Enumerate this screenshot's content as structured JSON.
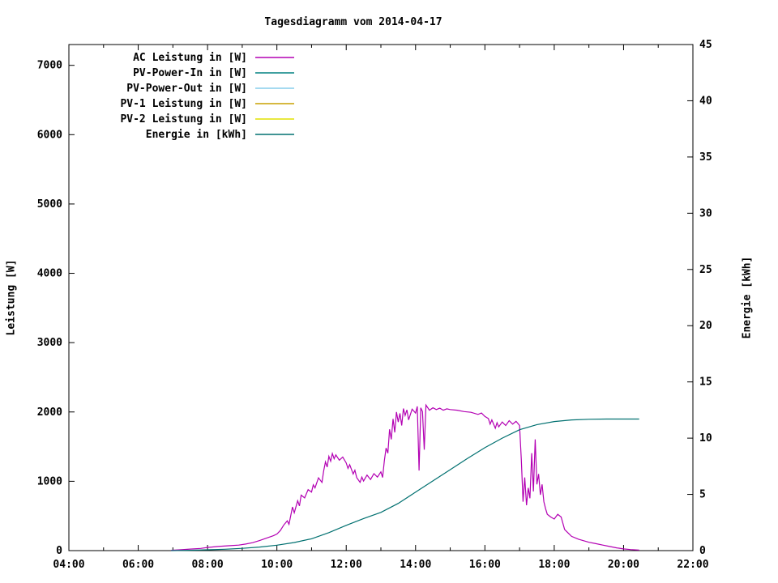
{
  "title": "Tagesdiagramm vom 2014-04-17",
  "left_axis_label": "Leistung [W]",
  "right_axis_label": "Energie [kWh]",
  "chart_data": {
    "type": "line",
    "title": "Tagesdiagramm vom 2014-04-17",
    "grid": false,
    "legend_position": "top-left-inside",
    "x_axis": {
      "range": [
        4,
        22
      ],
      "tick_hours": [
        4,
        6,
        8,
        10,
        12,
        14,
        16,
        18,
        20,
        22
      ],
      "tick_labels": [
        "04:00",
        "06:00",
        "08:00",
        "10:00",
        "12:00",
        "14:00",
        "16:00",
        "18:00",
        "20:00",
        "22:00"
      ]
    },
    "left_y_axis": {
      "label": "Leistung [W]",
      "range": [
        0,
        7300
      ],
      "ticks": [
        0,
        1000,
        2000,
        3000,
        4000,
        5000,
        6000,
        7000
      ]
    },
    "right_y_axis": {
      "label": "Energie [kWh]",
      "range": [
        0,
        45
      ],
      "ticks": [
        0,
        5,
        10,
        15,
        20,
        25,
        30,
        35,
        40,
        45
      ]
    },
    "series": [
      {
        "name": "AC Leistung in [W]",
        "color": "#b300b3",
        "axis": "left",
        "points": [
          [
            6.95,
            5
          ],
          [
            7.2,
            12
          ],
          [
            7.5,
            22
          ],
          [
            7.8,
            32
          ],
          [
            8.0,
            45
          ],
          [
            8.3,
            60
          ],
          [
            8.6,
            70
          ],
          [
            8.9,
            80
          ],
          [
            9.1,
            95
          ],
          [
            9.3,
            115
          ],
          [
            9.5,
            145
          ],
          [
            9.7,
            180
          ],
          [
            9.9,
            215
          ],
          [
            10.0,
            240
          ],
          [
            10.1,
            290
          ],
          [
            10.2,
            370
          ],
          [
            10.3,
            430
          ],
          [
            10.35,
            380
          ],
          [
            10.45,
            630
          ],
          [
            10.5,
            545
          ],
          [
            10.6,
            720
          ],
          [
            10.65,
            645
          ],
          [
            10.7,
            800
          ],
          [
            10.8,
            760
          ],
          [
            10.9,
            880
          ],
          [
            11.0,
            845
          ],
          [
            11.05,
            950
          ],
          [
            11.1,
            905
          ],
          [
            11.2,
            1050
          ],
          [
            11.3,
            985
          ],
          [
            11.35,
            1150
          ],
          [
            11.4,
            1280
          ],
          [
            11.45,
            1205
          ],
          [
            11.5,
            1360
          ],
          [
            11.55,
            1290
          ],
          [
            11.6,
            1400
          ],
          [
            11.65,
            1325
          ],
          [
            11.7,
            1380
          ],
          [
            11.8,
            1305
          ],
          [
            11.9,
            1350
          ],
          [
            12.0,
            1265
          ],
          [
            12.05,
            1185
          ],
          [
            12.1,
            1240
          ],
          [
            12.2,
            1105
          ],
          [
            12.25,
            1160
          ],
          [
            12.3,
            1055
          ],
          [
            12.4,
            985
          ],
          [
            12.45,
            1060
          ],
          [
            12.5,
            1005
          ],
          [
            12.6,
            1090
          ],
          [
            12.7,
            1025
          ],
          [
            12.8,
            1110
          ],
          [
            12.9,
            1060
          ],
          [
            13.0,
            1135
          ],
          [
            13.05,
            1055
          ],
          [
            13.1,
            1300
          ],
          [
            13.15,
            1480
          ],
          [
            13.2,
            1405
          ],
          [
            13.25,
            1750
          ],
          [
            13.3,
            1605
          ],
          [
            13.35,
            1900
          ],
          [
            13.4,
            1705
          ],
          [
            13.45,
            2000
          ],
          [
            13.5,
            1855
          ],
          [
            13.55,
            1980
          ],
          [
            13.6,
            1805
          ],
          [
            13.65,
            2050
          ],
          [
            13.7,
            1950
          ],
          [
            13.75,
            2030
          ],
          [
            13.8,
            1885
          ],
          [
            13.9,
            2040
          ],
          [
            14.0,
            1985
          ],
          [
            14.05,
            2080
          ],
          [
            14.1,
            1155
          ],
          [
            14.15,
            2060
          ],
          [
            14.2,
            2005
          ],
          [
            14.25,
            1455
          ],
          [
            14.3,
            2100
          ],
          [
            14.4,
            2025
          ],
          [
            14.5,
            2060
          ],
          [
            14.6,
            2035
          ],
          [
            14.7,
            2055
          ],
          [
            14.8,
            2025
          ],
          [
            14.9,
            2045
          ],
          [
            15.0,
            2035
          ],
          [
            15.2,
            2025
          ],
          [
            15.4,
            2005
          ],
          [
            15.6,
            1995
          ],
          [
            15.8,
            1965
          ],
          [
            15.9,
            1985
          ],
          [
            16.0,
            1935
          ],
          [
            16.1,
            1905
          ],
          [
            16.15,
            1825
          ],
          [
            16.2,
            1885
          ],
          [
            16.3,
            1765
          ],
          [
            16.35,
            1845
          ],
          [
            16.4,
            1785
          ],
          [
            16.5,
            1855
          ],
          [
            16.6,
            1805
          ],
          [
            16.7,
            1875
          ],
          [
            16.8,
            1825
          ],
          [
            16.9,
            1865
          ],
          [
            17.0,
            1805
          ],
          [
            17.05,
            1305
          ],
          [
            17.1,
            705
          ],
          [
            17.15,
            1055
          ],
          [
            17.2,
            655
          ],
          [
            17.25,
            905
          ],
          [
            17.3,
            755
          ],
          [
            17.35,
            1405
          ],
          [
            17.4,
            855
          ],
          [
            17.45,
            1605
          ],
          [
            17.5,
            955
          ],
          [
            17.55,
            1105
          ],
          [
            17.6,
            805
          ],
          [
            17.65,
            955
          ],
          [
            17.7,
            705
          ],
          [
            17.75,
            605
          ],
          [
            17.8,
            525
          ],
          [
            17.9,
            485
          ],
          [
            18.0,
            455
          ],
          [
            18.1,
            525
          ],
          [
            18.2,
            485
          ],
          [
            18.3,
            305
          ],
          [
            18.4,
            255
          ],
          [
            18.5,
            205
          ],
          [
            18.7,
            165
          ],
          [
            18.9,
            135
          ],
          [
            19.0,
            120
          ],
          [
            19.2,
            100
          ],
          [
            19.4,
            80
          ],
          [
            19.6,
            60
          ],
          [
            19.8,
            40
          ],
          [
            20.0,
            25
          ],
          [
            20.2,
            15
          ],
          [
            20.45,
            8
          ]
        ]
      },
      {
        "name": "PV-Power-In in [W]",
        "color": "#008080",
        "axis": "left",
        "points": []
      },
      {
        "name": "PV-Power-Out in [W]",
        "color": "#87ceeb",
        "axis": "left",
        "points": []
      },
      {
        "name": "PV-1 Leistung in [W]",
        "color": "#c8a000",
        "axis": "left",
        "points": []
      },
      {
        "name": "PV-2 Leistung in [W]",
        "color": "#e0e000",
        "axis": "left",
        "points": []
      },
      {
        "name": "Energie in [kWh]",
        "color": "#007070",
        "axis": "right",
        "points": [
          [
            6.95,
            0
          ],
          [
            7.5,
            0.03
          ],
          [
            8.0,
            0.07
          ],
          [
            8.5,
            0.12
          ],
          [
            9.0,
            0.2
          ],
          [
            9.5,
            0.32
          ],
          [
            10.0,
            0.48
          ],
          [
            10.5,
            0.72
          ],
          [
            11.0,
            1.05
          ],
          [
            11.5,
            1.6
          ],
          [
            12.0,
            2.25
          ],
          [
            12.5,
            2.85
          ],
          [
            13.0,
            3.4
          ],
          [
            13.5,
            4.2
          ],
          [
            14.0,
            5.2
          ],
          [
            14.5,
            6.2
          ],
          [
            15.0,
            7.2
          ],
          [
            15.5,
            8.2
          ],
          [
            16.0,
            9.15
          ],
          [
            16.5,
            10.0
          ],
          [
            17.0,
            10.75
          ],
          [
            17.5,
            11.2
          ],
          [
            18.0,
            11.48
          ],
          [
            18.5,
            11.62
          ],
          [
            19.0,
            11.68
          ],
          [
            19.5,
            11.7
          ],
          [
            20.0,
            11.7
          ],
          [
            20.45,
            11.7
          ]
        ]
      }
    ]
  }
}
